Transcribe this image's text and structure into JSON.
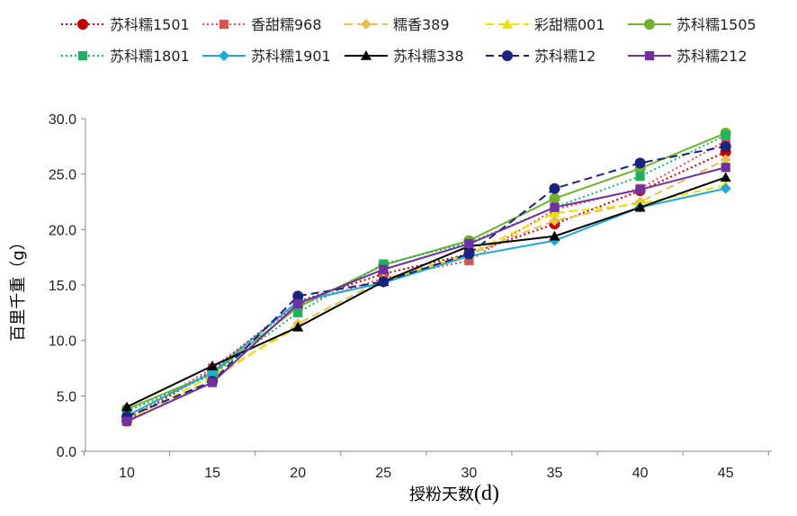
{
  "chart_data": {
    "type": "line",
    "xlabel": "授粉天数",
    "xlabel_unit": "(d)",
    "ylabel": "百里千重（g）",
    "x": [
      10,
      15,
      20,
      25,
      30,
      35,
      40,
      45
    ],
    "x_tick_labels": [
      "10",
      "15",
      "20",
      "25",
      "30",
      "35",
      "40",
      "45"
    ],
    "y_tick_labels": [
      "0.0",
      "5.0",
      "10.0",
      "15.0",
      "20.0",
      "25.0",
      "30.0"
    ],
    "ylim": [
      0,
      30
    ],
    "yticks": [
      0,
      5,
      10,
      15,
      20,
      25,
      30
    ],
    "grid": false,
    "legend_position": "top",
    "series": [
      {
        "name": "苏科糯1501",
        "color": "#c00000",
        "dash": "dot",
        "marker": "circle",
        "values": [
          2.7,
          7.3,
          13.5,
          16.0,
          17.8,
          20.5,
          23.5,
          27.0
        ]
      },
      {
        "name": "香甜糯968",
        "color": "#e05050",
        "dash": "dot",
        "marker": "square",
        "values": [
          2.9,
          7.5,
          13.2,
          15.6,
          17.2,
          21.8,
          23.7,
          28.0
        ]
      },
      {
        "name": "糯香389",
        "color": "#e8c050",
        "dash": "dash",
        "marker": "diamond",
        "values": [
          2.6,
          6.5,
          11.5,
          15.5,
          17.8,
          20.8,
          22.5,
          26.3
        ]
      },
      {
        "name": "彩甜糯001",
        "color": "#e8e000",
        "dash": "dash",
        "marker": "triangle",
        "values": [
          2.8,
          6.8,
          11.2,
          15.3,
          17.8,
          21.5,
          22.3,
          24.0
        ]
      },
      {
        "name": "苏科糯1505",
        "color": "#70b030",
        "dash": "solid",
        "marker": "circle",
        "values": [
          3.8,
          7.0,
          13.0,
          16.8,
          19.0,
          22.8,
          25.5,
          28.7
        ]
      },
      {
        "name": "苏科糯1801",
        "color": "#20b060",
        "dash": "dot",
        "marker": "square",
        "values": [
          3.6,
          6.9,
          12.5,
          16.9,
          18.8,
          22.0,
          24.8,
          28.5
        ]
      },
      {
        "name": "苏科糯1901",
        "color": "#20a8d8",
        "dash": "solid",
        "marker": "diamond",
        "values": [
          3.2,
          7.1,
          13.5,
          15.2,
          17.6,
          19.0,
          22.0,
          23.7
        ]
      },
      {
        "name": "苏科糯338",
        "color": "#000000",
        "dash": "solid",
        "marker": "triangle",
        "values": [
          4.0,
          7.7,
          11.2,
          15.3,
          18.5,
          19.4,
          22.0,
          24.7
        ]
      },
      {
        "name": "苏科糯12",
        "color": "#1a237e",
        "dash": "dash",
        "marker": "circle",
        "values": [
          3.1,
          6.3,
          14.0,
          15.3,
          17.8,
          23.7,
          26.0,
          27.5
        ]
      },
      {
        "name": "苏科糯212",
        "color": "#7030a0",
        "dash": "solid",
        "marker": "square",
        "values": [
          2.7,
          6.2,
          13.3,
          16.4,
          18.7,
          22.0,
          23.6,
          25.6
        ]
      }
    ]
  }
}
